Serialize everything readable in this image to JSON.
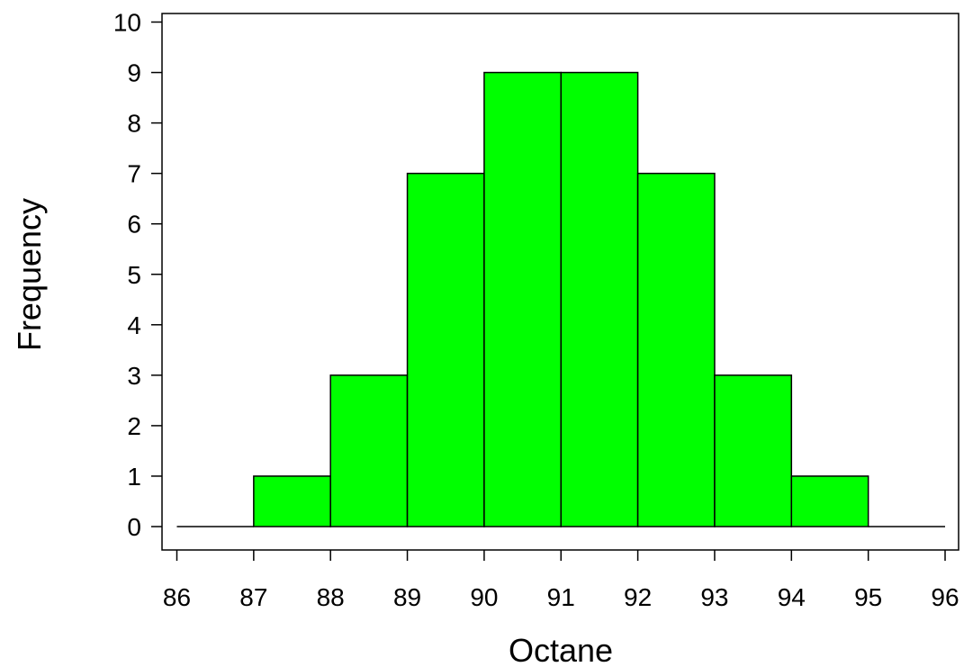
{
  "chart_data": {
    "type": "bar",
    "title": "",
    "xlabel": "Octane",
    "ylabel": "Frequency",
    "bins": [
      {
        "from": 86,
        "to": 87,
        "count": 0
      },
      {
        "from": 87,
        "to": 88,
        "count": 1
      },
      {
        "from": 88,
        "to": 89,
        "count": 3
      },
      {
        "from": 89,
        "to": 90,
        "count": 7
      },
      {
        "from": 90,
        "to": 91,
        "count": 9
      },
      {
        "from": 91,
        "to": 92,
        "count": 9
      },
      {
        "from": 92,
        "to": 93,
        "count": 7
      },
      {
        "from": 93,
        "to": 94,
        "count": 3
      },
      {
        "from": 94,
        "to": 95,
        "count": 1
      },
      {
        "from": 95,
        "to": 96,
        "count": 0
      }
    ],
    "xlim": [
      86,
      96
    ],
    "ylim": [
      0,
      10
    ],
    "xticks": [
      "86",
      "87",
      "88",
      "89",
      "90",
      "91",
      "92",
      "93",
      "94",
      "95",
      "96"
    ],
    "yticks": [
      "0",
      "1",
      "2",
      "3",
      "4",
      "5",
      "6",
      "7",
      "8",
      "9",
      "10"
    ],
    "grid": false,
    "legend": "none",
    "bar_color": "#00ff00",
    "edge_color": "#000000"
  }
}
